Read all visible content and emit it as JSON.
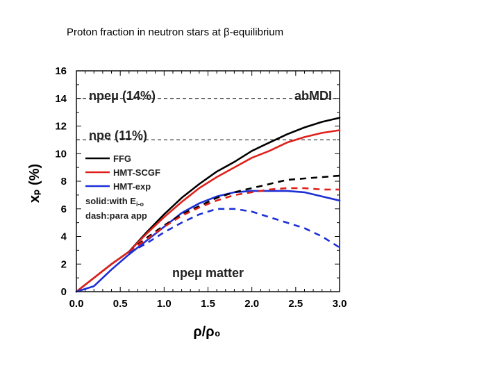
{
  "slide": {
    "title": "Proton fraction in neutron stars at β-equilibrium"
  },
  "chart_data": {
    "type": "line",
    "xlabel": "ρ/ρ₀",
    "ylabel": "xₚ (%)",
    "xlim": [
      0,
      3
    ],
    "ylim": [
      0,
      16
    ],
    "xticks": [
      0.0,
      0.5,
      1.0,
      1.5,
      2.0,
      2.5,
      3.0
    ],
    "xtick_labels": [
      "0.0",
      "0.5",
      "1.0",
      "1.5",
      "2.0",
      "2.5",
      "3.0"
    ],
    "yticks": [
      0,
      2,
      4,
      6,
      8,
      10,
      12,
      14,
      16
    ],
    "ytick_labels": [
      "0",
      "2",
      "4",
      "6",
      "8",
      "10",
      "12",
      "14",
      "16"
    ],
    "grid": false,
    "reference_lines": [
      {
        "label": "npeμ (14%)",
        "y": 14
      },
      {
        "label": "npe (11%)",
        "y": 11
      }
    ],
    "annotations": {
      "model": "abMDI",
      "matter": "npeμ matter"
    },
    "legend": {
      "placement": "center-left",
      "entries": [
        {
          "label": "FFG",
          "color": "#000000"
        },
        {
          "label": "HMT-SCGF",
          "color": "#e0201a"
        },
        {
          "label": "HMT-exp",
          "color": "#1c2fd6"
        }
      ],
      "notes": {
        "solid_label": "solid:with E",
        "solid_sub": "i-o",
        "dash_label": "dash:para app"
      }
    },
    "series": [
      {
        "name": "FFG",
        "style": "solid",
        "color": "#000000",
        "x": [
          0.0,
          0.2,
          0.4,
          0.6,
          0.8,
          1.0,
          1.2,
          1.4,
          1.6,
          1.8,
          2.0,
          2.2,
          2.4,
          2.6,
          2.8,
          3.0
        ],
        "y": [
          0.0,
          1.0,
          2.0,
          2.9,
          4.3,
          5.6,
          6.8,
          7.8,
          8.7,
          9.4,
          10.2,
          10.8,
          11.4,
          11.9,
          12.3,
          12.6
        ]
      },
      {
        "name": "HMT-SCGF",
        "style": "solid",
        "color": "#e0201a",
        "x": [
          0.0,
          0.2,
          0.4,
          0.6,
          0.8,
          1.0,
          1.2,
          1.4,
          1.6,
          1.8,
          2.0,
          2.2,
          2.4,
          2.6,
          2.8,
          3.0
        ],
        "y": [
          0.0,
          1.0,
          2.0,
          2.9,
          4.2,
          5.4,
          6.5,
          7.5,
          8.3,
          9.0,
          9.7,
          10.2,
          10.8,
          11.2,
          11.5,
          11.7
        ]
      },
      {
        "name": "HMT-exp",
        "style": "solid",
        "color": "#1c2fd6",
        "x": [
          0.0,
          0.2,
          0.4,
          0.6,
          0.8,
          1.0,
          1.2,
          1.4,
          1.6,
          1.8,
          2.0,
          2.2,
          2.4,
          2.6,
          2.8,
          3.0
        ],
        "y": [
          0.0,
          0.4,
          1.6,
          2.7,
          3.7,
          4.7,
          5.7,
          6.4,
          6.9,
          7.2,
          7.3,
          7.3,
          7.3,
          7.2,
          6.9,
          6.6
        ]
      },
      {
        "name": "FFG",
        "style": "dashed",
        "color": "#000000",
        "x": [
          0.6,
          0.8,
          1.0,
          1.2,
          1.4,
          1.6,
          1.8,
          2.0,
          2.2,
          2.4,
          2.6,
          2.8,
          3.0
        ],
        "y": [
          2.9,
          3.9,
          4.8,
          5.6,
          6.2,
          6.8,
          7.2,
          7.5,
          7.8,
          8.1,
          8.2,
          8.3,
          8.4
        ]
      },
      {
        "name": "HMT-SCGF",
        "style": "dashed",
        "color": "#e0201a",
        "x": [
          0.6,
          0.8,
          1.0,
          1.2,
          1.4,
          1.6,
          1.8,
          2.0,
          2.2,
          2.4,
          2.6,
          2.8,
          3.0
        ],
        "y": [
          2.9,
          3.8,
          4.7,
          5.5,
          6.1,
          6.6,
          7.0,
          7.2,
          7.4,
          7.5,
          7.5,
          7.4,
          7.4
        ]
      },
      {
        "name": "HMT-exp",
        "style": "dashed",
        "color": "#1c2fd6",
        "x": [
          0.6,
          0.8,
          1.0,
          1.2,
          1.4,
          1.6,
          1.8,
          2.0,
          2.2,
          2.4,
          2.6,
          2.8,
          3.0
        ],
        "y": [
          2.8,
          3.5,
          4.3,
          5.0,
          5.6,
          6.0,
          6.0,
          5.8,
          5.4,
          5.0,
          4.6,
          4.0,
          3.2
        ]
      }
    ]
  }
}
